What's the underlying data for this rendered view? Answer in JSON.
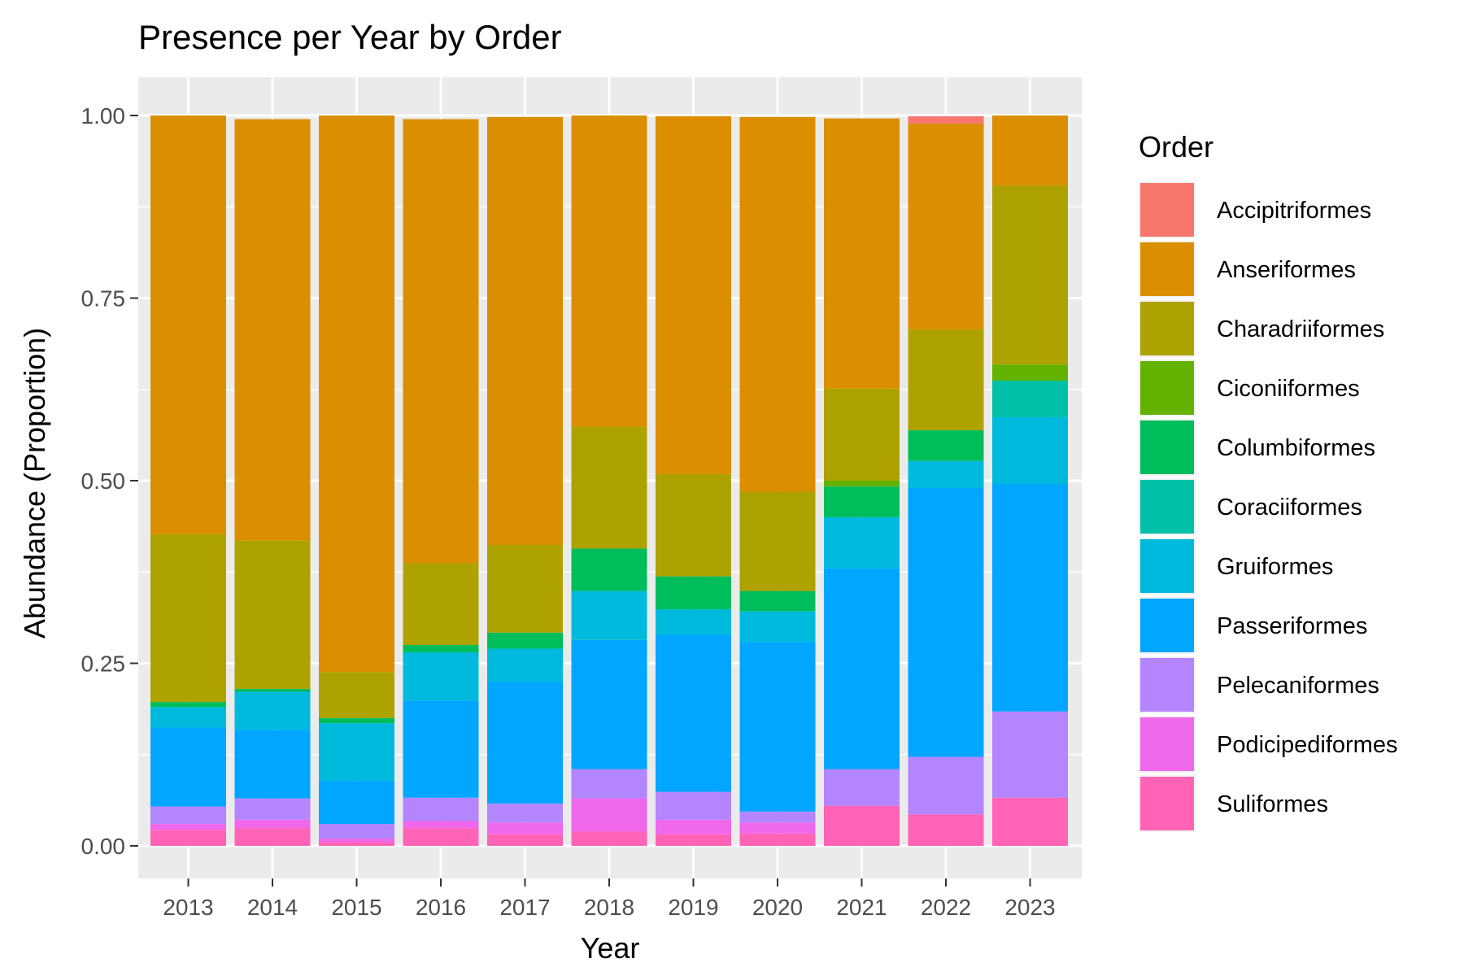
{
  "chart_data": {
    "type": "bar",
    "stacked": "proportion",
    "title": "Presence per Year by Order",
    "xlabel": "Year",
    "ylabel": "Abundance (Proportion)",
    "ylim": [
      0,
      1
    ],
    "yticks": [
      "0.00",
      "0.25",
      "0.50",
      "0.75",
      "1.00"
    ],
    "grid": true,
    "legend_title": "Order",
    "legend_position": "right",
    "categories": [
      "2013",
      "2014",
      "2015",
      "2016",
      "2017",
      "2018",
      "2019",
      "2020",
      "2021",
      "2022",
      "2023"
    ],
    "series": [
      {
        "name": "Accipitriformes",
        "color": "#F8766D",
        "values": [
          0,
          0,
          0,
          0,
          0,
          0,
          0,
          0,
          0,
          0.01,
          0
        ]
      },
      {
        "name": "Anseriformes",
        "color": "#DB8E00",
        "values": [
          0.573,
          0.577,
          0.762,
          0.608,
          0.586,
          0.426,
          0.49,
          0.513,
          0.37,
          0.282,
          0.096
        ]
      },
      {
        "name": "Charadriiformes",
        "color": "#AEA200",
        "values": [
          0.23,
          0.203,
          0.063,
          0.112,
          0.12,
          0.167,
          0.14,
          0.136,
          0.126,
          0.138,
          0.245
        ]
      },
      {
        "name": "Ciconiiformes",
        "color": "#64B200",
        "values": [
          0,
          0,
          0,
          0,
          0,
          0,
          0,
          0,
          0.008,
          0,
          0.022
        ]
      },
      {
        "name": "Columbiformes",
        "color": "#00BD5C",
        "values": [
          0.007,
          0.004,
          0.007,
          0.01,
          0.022,
          0.058,
          0.045,
          0.028,
          0.042,
          0.042,
          0
        ]
      },
      {
        "name": "Coraciiformes",
        "color": "#00C1A7",
        "values": [
          0,
          0,
          0,
          0,
          0,
          0,
          0,
          0,
          0,
          0,
          0.05
        ]
      },
      {
        "name": "Gruiformes",
        "color": "#00BADE",
        "values": [
          0.028,
          0.052,
          0.079,
          0.066,
          0.045,
          0.067,
          0.035,
          0.042,
          0.07,
          0.037,
          0.092
        ]
      },
      {
        "name": "Passeriformes",
        "color": "#00A6FF",
        "values": [
          0.108,
          0.094,
          0.059,
          0.133,
          0.167,
          0.177,
          0.215,
          0.232,
          0.275,
          0.368,
          0.311
        ]
      },
      {
        "name": "Pelecaniformes",
        "color": "#B385FF",
        "values": [
          0.024,
          0.029,
          0.02,
          0.032,
          0.026,
          0.04,
          0.038,
          0.015,
          0.05,
          0.079,
          0.118
        ]
      },
      {
        "name": "Podicipediformes",
        "color": "#EF67EB",
        "values": [
          0.008,
          0.012,
          0.005,
          0.01,
          0.016,
          0.045,
          0.02,
          0.015,
          0,
          0,
          0
        ]
      },
      {
        "name": "Suliformes",
        "color": "#FF63B6",
        "values": [
          0.022,
          0.024,
          0.005,
          0.024,
          0.016,
          0.02,
          0.016,
          0.017,
          0.055,
          0.043,
          0.066
        ]
      }
    ]
  }
}
